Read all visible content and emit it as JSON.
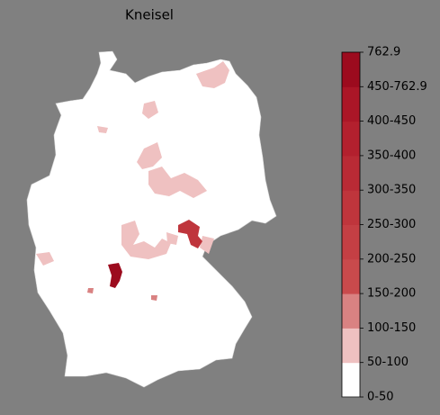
{
  "title": "Kneisel",
  "legend": {
    "ticks": [
      "0-50",
      "50-100",
      "100-150",
      "150-200",
      "200-250",
      "250-300",
      "300-350",
      "350-400",
      "400-450",
      "450-762.9",
      "762.9"
    ],
    "colors": [
      "#ffffff",
      "#efc1c1",
      "#d98282",
      "#c94a4c",
      "#c43f44",
      "#bf353c",
      "#b92a35",
      "#b3202e",
      "#ab1627",
      "#9c0b1e"
    ]
  }
}
